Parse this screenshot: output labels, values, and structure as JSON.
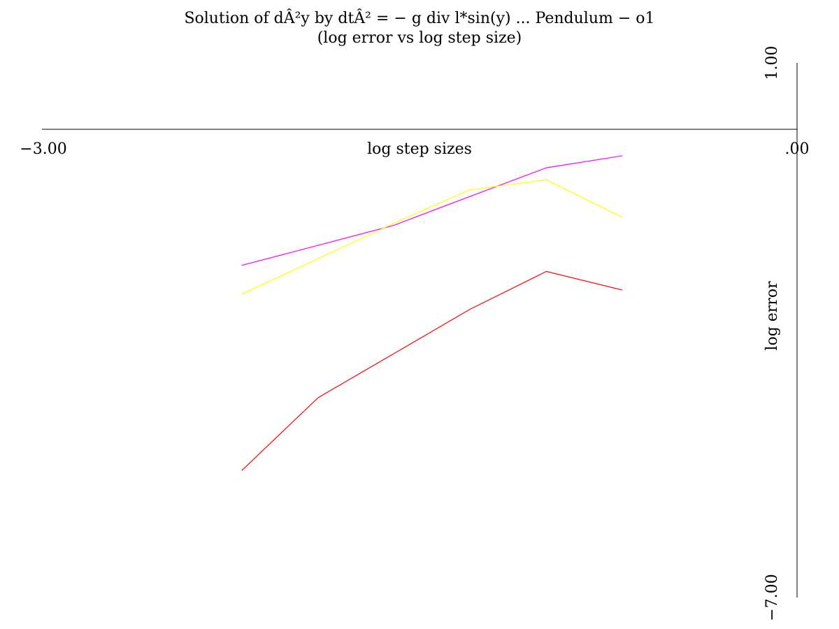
{
  "chart_data": {
    "type": "line",
    "title": "Solution of dÂ²y by dtÂ² = − g div l*sin(y) ... Pendulum − o1",
    "subtitle": "(log error vs log step size)",
    "xlabel": "log step sizes",
    "ylabel": "log error",
    "xlim": [
      -3.0,
      0.0
    ],
    "ylim": [
      -7.0,
      1.0
    ],
    "x_tick_labels": [
      "−3.00",
      ".00"
    ],
    "y_tick_labels": [
      "1.00",
      "−7.00"
    ],
    "grid": false,
    "series": [
      {
        "color": "#ff00ff",
        "x": [
          -2.206,
          -1.903,
          -1.602,
          -1.301,
          -0.996,
          -0.694
        ],
        "y": [
          -2.03,
          -1.73,
          -1.43,
          -1.0,
          -0.57,
          -0.39
        ]
      },
      {
        "color": "#ffff00",
        "x": [
          -2.206,
          -1.903,
          -1.602,
          -1.301,
          -0.996,
          -0.694
        ],
        "y": [
          -2.46,
          -1.93,
          -1.4,
          -0.9,
          -0.75,
          -1.31
        ]
      },
      {
        "color": "#ff0000",
        "x": [
          -2.206,
          -1.903,
          -1.602,
          -1.301,
          -0.996,
          -0.694
        ],
        "y": [
          -5.1,
          -4.01,
          -3.35,
          -2.69,
          -2.12,
          -2.4
        ]
      }
    ]
  }
}
